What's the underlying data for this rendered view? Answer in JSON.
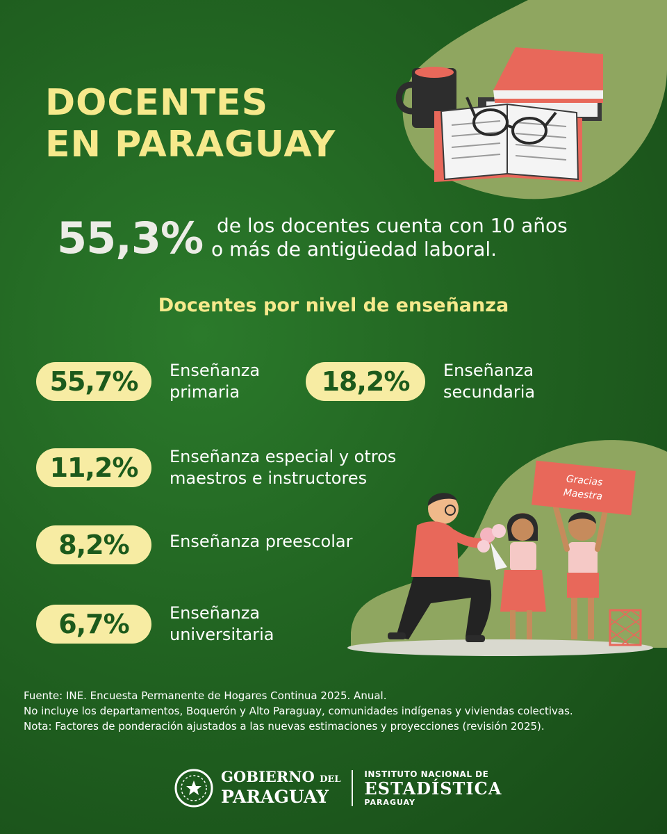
{
  "title": {
    "line1": "DOCENTES",
    "line2": "EN PARAGUAY"
  },
  "headline": {
    "value": "55,3%",
    "text_line1": "de los docentes cuenta con 10 años",
    "text_line2": "o más de antigüedad laboral."
  },
  "section_title": "Docentes por nivel de enseñanza",
  "levels": [
    {
      "value": "55,7%",
      "label_line1": "Enseñanza",
      "label_line2": "primaria"
    },
    {
      "value": "18,2%",
      "label_line1": "Enseñanza",
      "label_line2": "secundaria"
    },
    {
      "value": "11,2%",
      "label_line1": "Enseñanza especial y otros",
      "label_line2": "maestros e instructores"
    },
    {
      "value": "8,2%",
      "label_line1": "Enseñanza preescolar",
      "label_line2": ""
    },
    {
      "value": "6,7%",
      "label_line1": "Enseñanza",
      "label_line2": "universitaria"
    }
  ],
  "illustration": {
    "sign_line1": "Gracias",
    "sign_line2": "Maestra"
  },
  "notes": [
    "Fuente: INE. Encuesta Permanente de Hogares Continua 2025. Anual.",
    "No incluye los departamentos, Boquerón y Alto Paraguay, comunidades indígenas y viviendas colectivas.",
    "Nota: Factores de ponderación ajustados a las nuevas estimaciones y proyecciones (revisión 2025)."
  ],
  "footer": {
    "gov_line1": "GOBIERNO",
    "gov_del": "DEL",
    "gov_line2": "PARAGUAY",
    "ine_line1": "INSTITUTO NACIONAL DE",
    "ine_line2": "ESTADÍSTICA",
    "ine_line3": "PARAGUAY"
  },
  "colors": {
    "background": "#1f5c1f",
    "accent_yellow": "#f6e98c",
    "pill": "#f7eca3",
    "olive_blob": "#8fa660",
    "coral": "#e8685a"
  }
}
